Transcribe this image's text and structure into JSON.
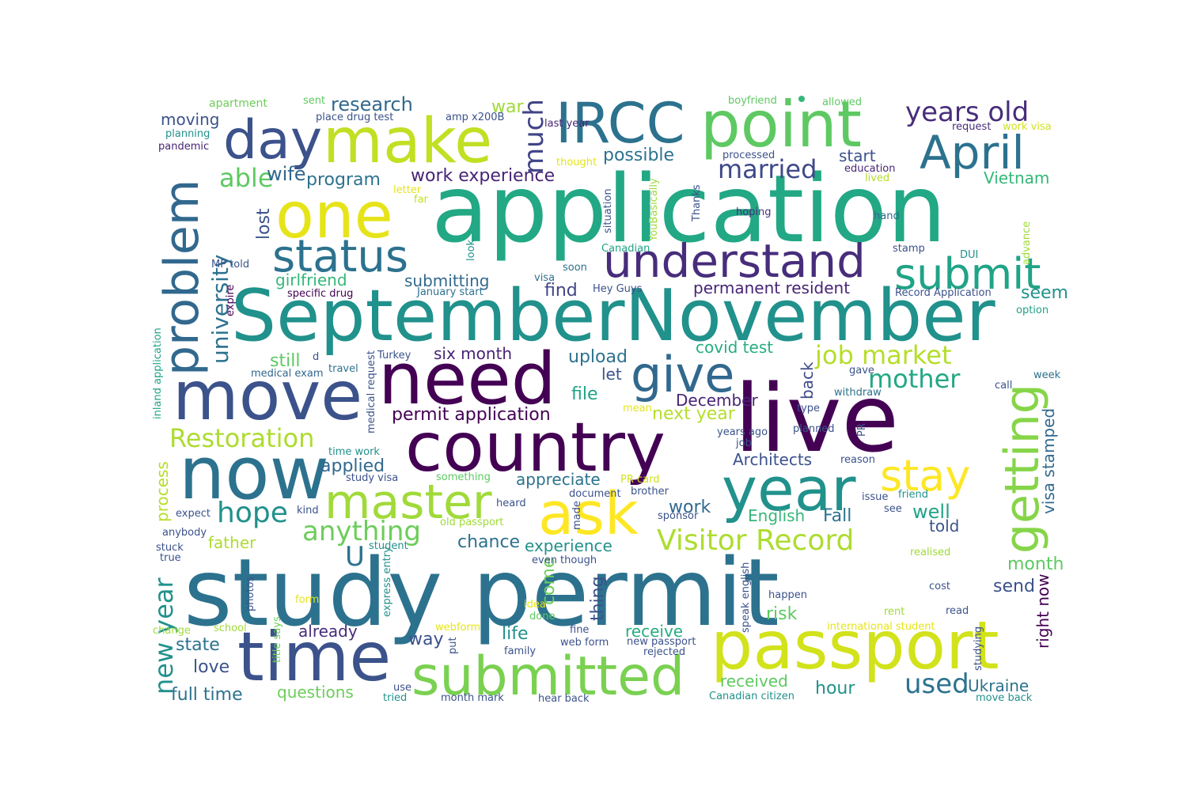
{
  "palette": {
    "background": "#ffffff",
    "dark_purple": "#440154",
    "indigo": "#3b528b",
    "blue": "#31688e",
    "teal": "#21918c",
    "green": "#35b779",
    "lime": "#90d743",
    "yellow": "#e6e419"
  },
  "words": [
    {
      "text": "study permit",
      "color": "#2c728e"
    },
    {
      "text": "application",
      "color": "#22a884"
    },
    {
      "text": "SeptemberNovember",
      "color": "#21918c"
    },
    {
      "text": "live",
      "color": "#440154"
    },
    {
      "text": "need",
      "color": "#440154"
    },
    {
      "text": "country",
      "color": "#440154"
    },
    {
      "text": "now",
      "color": "#2c728e"
    },
    {
      "text": "move",
      "color": "#3b528b"
    },
    {
      "text": "time",
      "color": "#3b528b"
    },
    {
      "text": "passport",
      "color": "#d2e21b"
    },
    {
      "text": "submitted",
      "color": "#7ad151"
    },
    {
      "text": "year",
      "color": "#21918c"
    },
    {
      "text": "one",
      "color": "#e6e419"
    },
    {
      "text": "make",
      "color": "#c2df23"
    },
    {
      "text": "point",
      "color": "#5ec962"
    },
    {
      "text": "IRCC",
      "color": "#2c728e"
    },
    {
      "text": "understand",
      "color": "#472d7b"
    },
    {
      "text": "ask",
      "color": "#fde725"
    },
    {
      "text": "master",
      "color": "#a0da39"
    },
    {
      "text": "day",
      "color": "#3b528b"
    },
    {
      "text": "April",
      "color": "#2c728e"
    },
    {
      "text": "status",
      "color": "#2c728e"
    },
    {
      "text": "submit",
      "color": "#20a386"
    },
    {
      "text": "give",
      "color": "#31688e"
    },
    {
      "text": "problem",
      "color": "#31688e"
    },
    {
      "text": "getting",
      "color": "#86d549"
    },
    {
      "text": "stay",
      "color": "#fde725"
    },
    {
      "text": "Visitor Record",
      "color": "#addc30"
    },
    {
      "text": "anything",
      "color": "#6ccd5a"
    },
    {
      "text": "hope",
      "color": "#21918c"
    },
    {
      "text": "job market",
      "color": "#b5de2b"
    },
    {
      "text": "years old",
      "color": "#472d7b"
    },
    {
      "text": "married",
      "color": "#3e4989"
    },
    {
      "text": "much",
      "color": "#414487"
    },
    {
      "text": "Restoration",
      "color": "#addc30"
    },
    {
      "text": "mother",
      "color": "#22a884"
    },
    {
      "text": "university",
      "color": "#2c728e"
    },
    {
      "text": "able",
      "color": "#5ec962"
    },
    {
      "text": "used",
      "color": "#2c728e"
    },
    {
      "text": "research",
      "color": "#31688e"
    },
    {
      "text": "program",
      "color": "#2c728e"
    },
    {
      "text": "wife",
      "color": "#31688e"
    },
    {
      "text": "work experience",
      "color": "#482475"
    },
    {
      "text": "possible",
      "color": "#2c728e"
    },
    {
      "text": "new year",
      "color": "#21918c"
    },
    {
      "text": "U",
      "color": "#2c728e"
    },
    {
      "text": "girlfriend",
      "color": "#35b779"
    },
    {
      "text": "submitting",
      "color": "#31688e"
    },
    {
      "text": "permanent resident",
      "color": "#482475"
    },
    {
      "text": "find",
      "color": "#414487"
    },
    {
      "text": "seem",
      "color": "#21918c"
    },
    {
      "text": "covid test",
      "color": "#26ad81"
    },
    {
      "text": "six month",
      "color": "#482475"
    },
    {
      "text": "upload",
      "color": "#2c728e"
    },
    {
      "text": "still",
      "color": "#5ec962"
    },
    {
      "text": "let",
      "color": "#3b528b"
    },
    {
      "text": "file",
      "color": "#20a386"
    },
    {
      "text": "December",
      "color": "#482475"
    },
    {
      "text": "permit application",
      "color": "#440154"
    },
    {
      "text": "next year",
      "color": "#b5de2b"
    },
    {
      "text": "Architects",
      "color": "#3b528b"
    },
    {
      "text": "applied",
      "color": "#31688e"
    },
    {
      "text": "appreciate",
      "color": "#2c728e"
    },
    {
      "text": "back",
      "color": "#3e4989"
    },
    {
      "text": "visa stamped",
      "color": "#31688e"
    },
    {
      "text": "well",
      "color": "#20a386"
    },
    {
      "text": "told",
      "color": "#3b528b"
    },
    {
      "text": "work",
      "color": "#31688e"
    },
    {
      "text": "English",
      "color": "#35b779"
    },
    {
      "text": "Fall",
      "color": "#2c728e"
    },
    {
      "text": "chance",
      "color": "#2c728e"
    },
    {
      "text": "experience",
      "color": "#21918c"
    },
    {
      "text": "father",
      "color": "#addc30"
    },
    {
      "text": "month",
      "color": "#5ec962"
    },
    {
      "text": "come",
      "color": "#6ccd5a"
    },
    {
      "text": "thing",
      "color": "#3b528b"
    },
    {
      "text": "send",
      "color": "#3b528b"
    },
    {
      "text": "right now",
      "color": "#440154"
    },
    {
      "text": "risk",
      "color": "#5ec962"
    },
    {
      "text": "receive",
      "color": "#26ad81"
    },
    {
      "text": "received",
      "color": "#5ec962"
    },
    {
      "text": "hour",
      "color": "#21918c"
    },
    {
      "text": "Ukraine",
      "color": "#2c728e"
    },
    {
      "text": "already",
      "color": "#472d7b"
    },
    {
      "text": "way",
      "color": "#3b528b"
    },
    {
      "text": "life",
      "color": "#21918c"
    },
    {
      "text": "state",
      "color": "#2c728e"
    },
    {
      "text": "love",
      "color": "#3b528b"
    },
    {
      "text": "full time",
      "color": "#2c728e"
    },
    {
      "text": "questions",
      "color": "#6ccd5a"
    },
    {
      "text": "process",
      "color": "#b5de2b"
    },
    {
      "text": "lost",
      "color": "#3b528b"
    },
    {
      "text": "war",
      "color": "#a0da39"
    },
    {
      "text": "moving",
      "color": "#3b528b"
    },
    {
      "text": "start",
      "color": "#3b528b"
    },
    {
      "text": "Vietnam",
      "color": "#35b779"
    },
    {
      "text": "apartment",
      "color": "#6ccd5a"
    },
    {
      "text": "sent",
      "color": "#5ec962"
    },
    {
      "text": "place drug test",
      "color": "#3b528b"
    },
    {
      "text": "amp x200B",
      "color": "#3b528b"
    },
    {
      "text": "last year",
      "color": "#482475"
    },
    {
      "text": "boyfriend",
      "color": "#5ec962"
    },
    {
      "text": "allowed",
      "color": "#5ec962"
    },
    {
      "text": "request",
      "color": "#472d7b"
    },
    {
      "text": "work visa",
      "color": "#d2e21b"
    },
    {
      "text": "planning",
      "color": "#21918c"
    },
    {
      "text": "pandemic",
      "color": "#482475"
    },
    {
      "text": "processed",
      "color": "#3b528b"
    },
    {
      "text": "thought",
      "color": "#e6e419"
    },
    {
      "text": "education",
      "color": "#482475"
    },
    {
      "text": "lived",
      "color": "#b5de2b"
    },
    {
      "text": "letter",
      "color": "#e6e419"
    },
    {
      "text": "far",
      "color": "#c2df23"
    },
    {
      "text": "situation",
      "color": "#3b528b"
    },
    {
      "text": "YouBasically",
      "color": "#a0da39"
    },
    {
      "text": "Thanks",
      "color": "#3b528b"
    },
    {
      "text": "hoping",
      "color": "#472d7b"
    },
    {
      "text": "hand",
      "color": "#31688e"
    },
    {
      "text": "look",
      "color": "#21918c"
    },
    {
      "text": "Canadian",
      "color": "#20a386"
    },
    {
      "text": "stamp",
      "color": "#3b528b"
    },
    {
      "text": "DUI",
      "color": "#21918c"
    },
    {
      "text": "advance",
      "color": "#a0da39"
    },
    {
      "text": "MP told",
      "color": "#3b528b"
    },
    {
      "text": "soon",
      "color": "#2c728e"
    },
    {
      "text": "visa",
      "color": "#2c728e"
    },
    {
      "text": "Hey Guys",
      "color": "#3b528b"
    },
    {
      "text": "expire",
      "color": "#440154"
    },
    {
      "text": "specific drug",
      "color": "#440154"
    },
    {
      "text": "January start",
      "color": "#2c728e"
    },
    {
      "text": "Record Application",
      "color": "#3b528b"
    },
    {
      "text": "option",
      "color": "#20a386"
    },
    {
      "text": "inland application",
      "color": "#20a386"
    },
    {
      "text": "medical request",
      "color": "#3b528b"
    },
    {
      "text": "Turkey",
      "color": "#3b528b"
    },
    {
      "text": "medical exam",
      "color": "#31688e"
    },
    {
      "text": "travel",
      "color": "#2c728e"
    },
    {
      "text": "gave",
      "color": "#3b528b"
    },
    {
      "text": "week",
      "color": "#2c728e"
    },
    {
      "text": "withdraw",
      "color": "#2c728e"
    },
    {
      "text": "call",
      "color": "#3b528b"
    },
    {
      "text": "type",
      "color": "#3b528b"
    },
    {
      "text": "mean",
      "color": "#e6e419"
    },
    {
      "text": "years ago",
      "color": "#3b528b"
    },
    {
      "text": "job",
      "color": "#3b528b"
    },
    {
      "text": "planned",
      "color": "#3b528b"
    },
    {
      "text": "PR",
      "color": "#3b528b"
    },
    {
      "text": "reason",
      "color": "#3b528b"
    },
    {
      "text": "time work",
      "color": "#21918c"
    },
    {
      "text": "study visa",
      "color": "#3b528b"
    },
    {
      "text": "something",
      "color": "#5ec962"
    },
    {
      "text": "PR card",
      "color": "#d2e21b"
    },
    {
      "text": "brother",
      "color": "#3b528b"
    },
    {
      "text": "document",
      "color": "#3b528b"
    },
    {
      "text": "issue",
      "color": "#3b528b"
    },
    {
      "text": "friend",
      "color": "#21918c"
    },
    {
      "text": "see",
      "color": "#3b528b"
    },
    {
      "text": "expect",
      "color": "#3b528b"
    },
    {
      "text": "kind",
      "color": "#3b528b"
    },
    {
      "text": "heard",
      "color": "#3b528b"
    },
    {
      "text": "made",
      "color": "#3b528b"
    },
    {
      "text": "sponsor",
      "color": "#3b528b"
    },
    {
      "text": "old passport",
      "color": "#a0da39"
    },
    {
      "text": "anybody",
      "color": "#3b528b"
    },
    {
      "text": "stuck",
      "color": "#3b528b"
    },
    {
      "text": "true",
      "color": "#3b528b"
    },
    {
      "text": "student",
      "color": "#21918c"
    },
    {
      "text": "even though",
      "color": "#3b528b"
    },
    {
      "text": "realised",
      "color": "#a0da39"
    },
    {
      "text": "photos",
      "color": "#3b528b"
    },
    {
      "text": "express entry",
      "color": "#21918c"
    },
    {
      "text": "idea",
      "color": "#e6e419"
    },
    {
      "text": "done",
      "color": "#5ec962"
    },
    {
      "text": "form",
      "color": "#e6e419"
    },
    {
      "text": "happen",
      "color": "#3b528b"
    },
    {
      "text": "speak english",
      "color": "#3b528b"
    },
    {
      "text": "rent",
      "color": "#a0da39"
    },
    {
      "text": "cost",
      "color": "#3b528b"
    },
    {
      "text": "read",
      "color": "#3b528b"
    },
    {
      "text": "change",
      "color": "#a0da39"
    },
    {
      "text": "school",
      "color": "#a0da39"
    },
    {
      "text": "title says",
      "color": "#6ccd5a"
    },
    {
      "text": "webform",
      "color": "#e6e419"
    },
    {
      "text": "put",
      "color": "#3b528b"
    },
    {
      "text": "fine",
      "color": "#3b528b"
    },
    {
      "text": "web form",
      "color": "#3b528b"
    },
    {
      "text": "family",
      "color": "#3b528b"
    },
    {
      "text": "new passport",
      "color": "#3b528b"
    },
    {
      "text": "rejected",
      "color": "#3b528b"
    },
    {
      "text": "international student",
      "color": "#e6e419"
    },
    {
      "text": "studying",
      "color": "#3b528b"
    },
    {
      "text": "use",
      "color": "#3b528b"
    },
    {
      "text": "tried",
      "color": "#21918c"
    },
    {
      "text": "month mark",
      "color": "#3b528b"
    },
    {
      "text": "hear back",
      "color": "#3b528b"
    },
    {
      "text": "Canadian citizen",
      "color": "#21918c"
    },
    {
      "text": "move back",
      "color": "#21918c"
    },
    {
      "text": "d",
      "color": "#3b528b"
    }
  ]
}
